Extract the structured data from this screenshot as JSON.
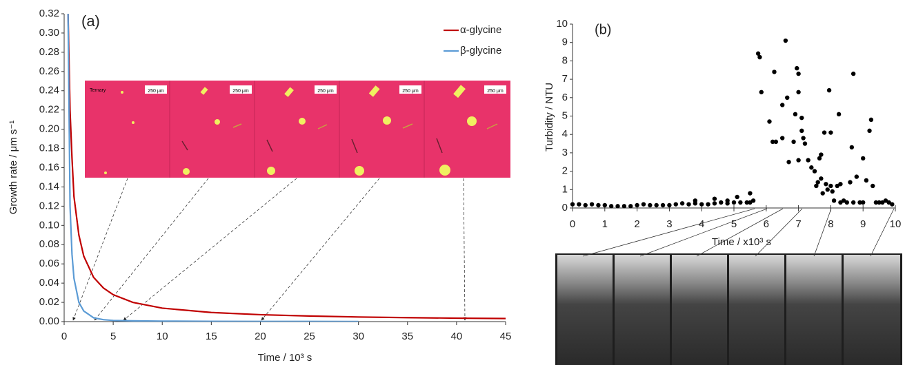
{
  "chart_data": [
    {
      "type": "line",
      "title": "(a)",
      "x_label": "Time  / 10³ s",
      "y_label": "Growth rate / μm s⁻¹",
      "x": [
        0.4,
        0.6,
        0.8,
        1,
        1.5,
        2,
        3,
        4,
        5,
        7,
        10,
        15,
        20,
        25,
        30,
        35,
        40,
        45
      ],
      "series": [
        {
          "name": "α-glycine",
          "color": "#c00000",
          "values": [
            0.32,
            0.22,
            0.17,
            0.13,
            0.09,
            0.068,
            0.046,
            0.035,
            0.028,
            0.02,
            0.014,
            0.0095,
            0.0072,
            0.0058,
            0.0048,
            0.0041,
            0.0036,
            0.0032
          ]
        },
        {
          "name": "β-glycine",
          "color": "#5b9bd5",
          "values": [
            0.32,
            0.12,
            0.07,
            0.045,
            0.02,
            0.011,
            0.004,
            0.002,
            0.0012,
            0.0008,
            0.0005,
            0.0003,
            0.0002,
            0.0002,
            0.0001,
            null,
            null,
            null
          ]
        }
      ],
      "xlim": [
        0,
        45
      ],
      "xticks": [
        0,
        5,
        10,
        15,
        20,
        25,
        30,
        35,
        40,
        45
      ],
      "ylim": [
        0,
        0.32
      ],
      "yticks": [
        {
          "value": 0,
          "label": "0.00"
        },
        {
          "value": 0.02,
          "label": "0.02"
        },
        {
          "value": 0.04,
          "label": "0.04"
        },
        {
          "value": 0.06,
          "label": "0.06"
        },
        {
          "value": 0.08,
          "label": "0.08"
        },
        {
          "value": 0.1,
          "label": "0.10"
        },
        {
          "value": 0.12,
          "label": "0.12"
        },
        {
          "value": 0.14,
          "label": "0.14"
        },
        {
          "value": 0.16,
          "label": "0.16"
        },
        {
          "value": 0.18,
          "label": "0.18"
        },
        {
          "value": 0.2,
          "label": "0.20"
        },
        {
          "value": 0.22,
          "label": "0.22"
        },
        {
          "value": 0.24,
          "label": "0.24"
        },
        {
          "value": 0.26,
          "label": "0.26"
        },
        {
          "value": 0.28,
          "label": "0.28"
        },
        {
          "value": 0.3,
          "label": "0.30"
        },
        {
          "value": 0.32,
          "label": "0.32"
        }
      ],
      "grid": false,
      "legend": "top-right",
      "inset_labels": [
        "Ternary",
        "250 μm",
        "250 μm",
        "250 μm",
        "250 μm",
        "250 μm"
      ]
    },
    {
      "type": "scatter",
      "title": "(b)",
      "x_label": "Time / x10³ s",
      "y_label": "Turbidity / NTU",
      "color": "#000000",
      "x": [
        0,
        0.2,
        0.4,
        0.6,
        0.8,
        1,
        1.2,
        1.4,
        1.6,
        1.8,
        2,
        2.2,
        2.4,
        2.6,
        2.8,
        3,
        3.2,
        3.4,
        3.6,
        3.8,
        4,
        4.2,
        4.4,
        4.6,
        4.8,
        5,
        5.2,
        5.4,
        5.5,
        5.6,
        3.8,
        4.4,
        4.8,
        5.1,
        5.5,
        5.75,
        5.8,
        5.85,
        6.1,
        6.2,
        6.25,
        6.3,
        6.5,
        6.5,
        6.6,
        6.65,
        6.7,
        6.85,
        6.9,
        6.95,
        7.0,
        7.0,
        7.0,
        7.1,
        7.1,
        7.15,
        7.2,
        7.3,
        7.4,
        7.5,
        7.55,
        7.6,
        7.65,
        7.7,
        7.7,
        7.75,
        7.8,
        7.85,
        7.9,
        7.95,
        8.0,
        8.0,
        8.05,
        8.1,
        8.2,
        8.25,
        8.3,
        8.4,
        8.5,
        8.6,
        8.65,
        8.7,
        8.8,
        8.9,
        9.0,
        9.1,
        9.2,
        9.25,
        9.3,
        9.4,
        9.5,
        9.6,
        9.7,
        9.8,
        9.9,
        8.3,
        8.7,
        9.0
      ],
      "values": [
        0.2,
        0.2,
        0.15,
        0.2,
        0.15,
        0.15,
        0.1,
        0.1,
        0.1,
        0.1,
        0.15,
        0.2,
        0.15,
        0.15,
        0.15,
        0.15,
        0.2,
        0.25,
        0.2,
        0.25,
        0.2,
        0.2,
        0.25,
        0.3,
        0.25,
        0.3,
        0.3,
        0.3,
        0.3,
        0.4,
        0.4,
        0.5,
        0.4,
        0.6,
        0.8,
        8.4,
        8.2,
        6.3,
        4.7,
        3.6,
        7.4,
        3.6,
        5.6,
        3.8,
        9.1,
        6.0,
        2.5,
        3.6,
        5.1,
        7.6,
        7.3,
        6.3,
        2.6,
        4.9,
        4.2,
        3.8,
        3.5,
        2.6,
        2.2,
        2.0,
        1.2,
        1.4,
        2.7,
        2.9,
        1.6,
        0.8,
        4.1,
        1.3,
        1.0,
        6.4,
        4.1,
        1.2,
        0.9,
        0.4,
        1.2,
        5.1,
        1.3,
        0.4,
        0.3,
        1.4,
        3.3,
        7.3,
        1.7,
        0.3,
        2.7,
        1.5,
        4.2,
        4.8,
        1.2,
        0.3,
        0.3,
        0.3,
        0.4,
        0.3,
        0.2,
        0.3,
        0.3,
        0.3
      ],
      "xlim": [
        0,
        10
      ],
      "xticks": [
        0,
        1,
        2,
        3,
        4,
        5,
        6,
        7,
        8,
        9,
        10
      ],
      "ylim": [
        0,
        10
      ],
      "yticks": [
        0,
        1,
        2,
        3,
        4,
        5,
        6,
        7,
        8,
        9,
        10
      ],
      "grid": false
    }
  ]
}
